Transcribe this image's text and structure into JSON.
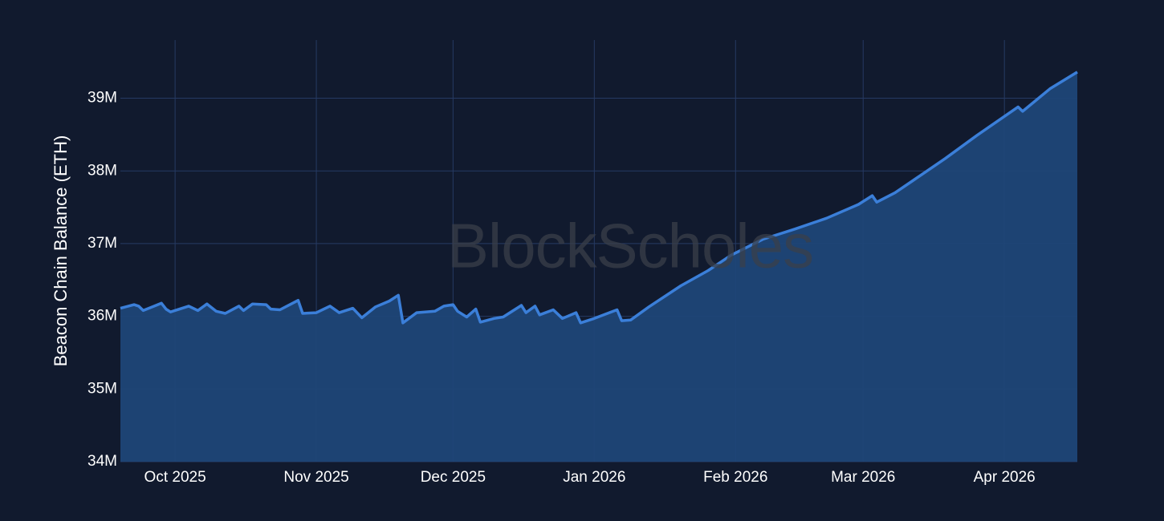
{
  "chart_data": {
    "type": "area",
    "y_axis_label": "Beacon Chain Balance (ETH)",
    "watermark": "BlockScholes",
    "x": [
      0,
      3,
      4,
      5,
      9,
      10,
      11,
      15,
      17,
      19,
      21,
      23,
      26,
      27,
      29,
      32,
      33,
      35,
      39,
      40,
      43,
      46,
      48,
      51,
      53,
      56,
      59,
      61,
      62,
      65,
      69,
      71,
      73,
      74,
      76,
      78,
      79,
      82,
      84,
      88,
      89,
      91,
      92,
      95,
      97,
      100,
      101,
      104,
      109,
      110,
      112,
      116,
      123,
      129,
      134,
      141,
      148,
      155,
      162,
      165,
      166,
      170,
      174,
      181,
      188,
      197,
      198,
      204,
      210
    ],
    "series": [
      {
        "name": "Beacon Chain Balance",
        "color": "#3b7fd9",
        "fill": "#1f4677",
        "values": [
          36110000,
          36160000,
          36140000,
          36080000,
          36180000,
          36100000,
          36060000,
          36140000,
          36080000,
          36170000,
          36070000,
          36040000,
          36140000,
          36080000,
          36170000,
          36160000,
          36100000,
          36090000,
          36220000,
          36040000,
          36050000,
          36140000,
          36050000,
          36110000,
          35980000,
          36130000,
          36210000,
          36290000,
          35910000,
          36050000,
          36070000,
          36140000,
          36160000,
          36070000,
          35990000,
          36100000,
          35920000,
          35970000,
          35990000,
          36150000,
          36050000,
          36140000,
          36020000,
          36090000,
          35970000,
          36050000,
          35910000,
          35970000,
          36090000,
          35940000,
          35950000,
          36130000,
          36420000,
          36630000,
          36840000,
          37060000,
          37200000,
          37350000,
          37540000,
          37660000,
          37570000,
          37700000,
          37870000,
          38170000,
          38490000,
          38880000,
          38820000,
          39130000,
          39360000
        ]
      }
    ],
    "xlim": [
      0,
      210
    ],
    "xticks": [
      {
        "value": 12,
        "label": "Oct 2025"
      },
      {
        "value": 43,
        "label": "Nov 2025"
      },
      {
        "value": 73,
        "label": "Dec 2025"
      },
      {
        "value": 104,
        "label": "Jan 2026"
      },
      {
        "value": 135,
        "label": "Feb 2026"
      },
      {
        "value": 163,
        "label": "Mar 2026"
      },
      {
        "value": 194,
        "label": "Apr 2026"
      }
    ],
    "ylim": [
      34000000,
      39800000
    ],
    "yticks": [
      {
        "value": 34000000,
        "label": "34M"
      },
      {
        "value": 35000000,
        "label": "35M"
      },
      {
        "value": 36000000,
        "label": "36M"
      },
      {
        "value": 37000000,
        "label": "37M"
      },
      {
        "value": 38000000,
        "label": "38M"
      },
      {
        "value": 39000000,
        "label": "39M"
      }
    ],
    "grid": true
  }
}
